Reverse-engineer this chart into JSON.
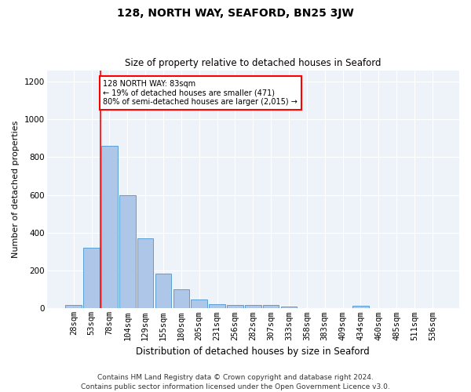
{
  "title": "128, NORTH WAY, SEAFORD, BN25 3JW",
  "subtitle": "Size of property relative to detached houses in Seaford",
  "xlabel": "Distribution of detached houses by size in Seaford",
  "ylabel": "Number of detached properties",
  "bar_color": "#aec6e8",
  "bar_edge_color": "#5a9fd4",
  "background_color": "#eef2f9",
  "grid_color": "#ffffff",
  "categories": [
    "28sqm",
    "53sqm",
    "78sqm",
    "104sqm",
    "129sqm",
    "155sqm",
    "180sqm",
    "205sqm",
    "231sqm",
    "256sqm",
    "282sqm",
    "307sqm",
    "333sqm",
    "358sqm",
    "383sqm",
    "409sqm",
    "434sqm",
    "460sqm",
    "485sqm",
    "511sqm",
    "536sqm"
  ],
  "values": [
    17,
    320,
    860,
    600,
    370,
    185,
    103,
    47,
    22,
    18,
    18,
    20,
    10,
    0,
    0,
    0,
    12,
    0,
    0,
    0,
    0
  ],
  "ylim": [
    0,
    1260
  ],
  "yticks": [
    0,
    200,
    400,
    600,
    800,
    1000,
    1200
  ],
  "vline_x": 1.5,
  "annotation_text": "128 NORTH WAY: 83sqm\n← 19% of detached houses are smaller (471)\n80% of semi-detached houses are larger (2,015) →",
  "annotation_box_color": "white",
  "annotation_box_edgecolor": "red",
  "vline_color": "red",
  "footnote_line1": "Contains HM Land Registry data © Crown copyright and database right 2024.",
  "footnote_line2": "Contains public sector information licensed under the Open Government Licence v3.0.",
  "title_fontsize": 10,
  "subtitle_fontsize": 8.5,
  "ylabel_fontsize": 8,
  "xlabel_fontsize": 8.5,
  "tick_fontsize": 7.5,
  "footnote_fontsize": 6.5
}
